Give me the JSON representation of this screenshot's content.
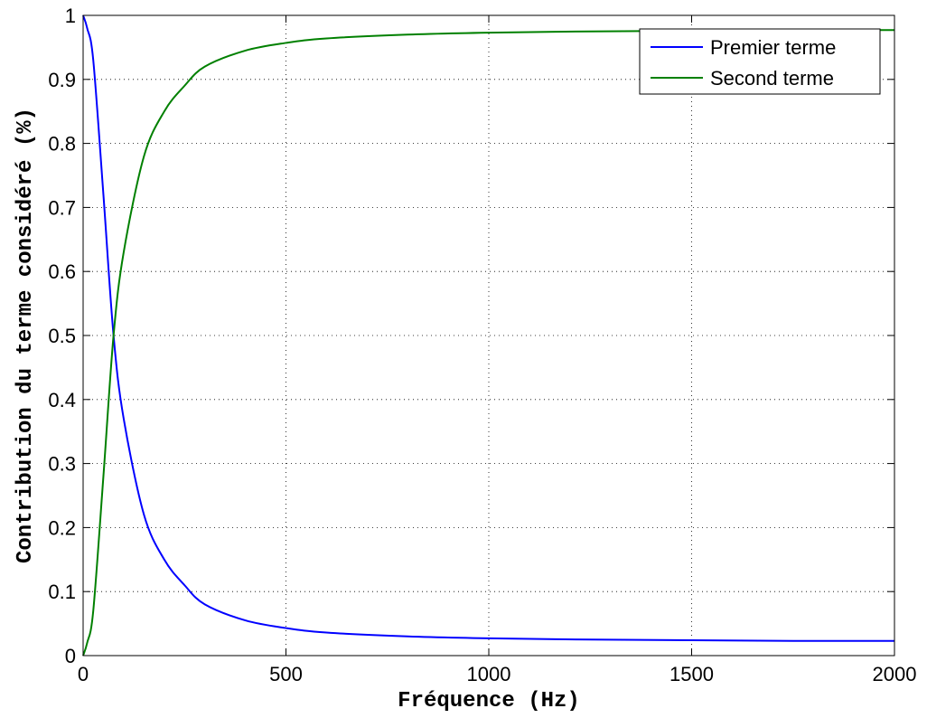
{
  "chart_data": {
    "type": "line",
    "xlabel": "Fréquence (Hz)",
    "ylabel": "Contribution du terme considéré (%)",
    "xlim": [
      0,
      2000
    ],
    "ylim": [
      0,
      1
    ],
    "xticks": [
      0,
      500,
      1000,
      1500,
      2000
    ],
    "xtick_labels": [
      "0",
      "500",
      "1000",
      "1500",
      "2000"
    ],
    "yticks": [
      0,
      0.1,
      0.2,
      0.3,
      0.4,
      0.5,
      0.6,
      0.7,
      0.8,
      0.9,
      1
    ],
    "ytick_labels": [
      "0",
      "0.1",
      "0.2",
      "0.3",
      "0.4",
      "0.5",
      "0.6",
      "0.7",
      "0.8",
      "0.9",
      "1"
    ],
    "grid": true,
    "legend_position": "top-right",
    "series": [
      {
        "name": "Premier terme",
        "color": "#0000ff",
        "x": [
          0,
          10,
          25,
          50,
          75,
          100,
          150,
          200,
          250,
          300,
          400,
          500,
          600,
          800,
          1000,
          1250,
          1500,
          1750,
          2000
        ],
        "y": [
          1.0,
          0.98,
          0.93,
          0.72,
          0.5,
          0.37,
          0.22,
          0.15,
          0.11,
          0.08,
          0.055,
          0.043,
          0.036,
          0.03,
          0.027,
          0.025,
          0.024,
          0.023,
          0.023
        ]
      },
      {
        "name": "Second terme",
        "color": "#008000",
        "x": [
          0,
          10,
          25,
          50,
          75,
          100,
          150,
          200,
          250,
          300,
          400,
          500,
          600,
          800,
          1000,
          1250,
          1500,
          1750,
          2000
        ],
        "y": [
          0.0,
          0.02,
          0.07,
          0.28,
          0.5,
          0.63,
          0.78,
          0.85,
          0.89,
          0.92,
          0.945,
          0.957,
          0.964,
          0.97,
          0.973,
          0.975,
          0.976,
          0.977,
          0.977
        ]
      }
    ]
  }
}
